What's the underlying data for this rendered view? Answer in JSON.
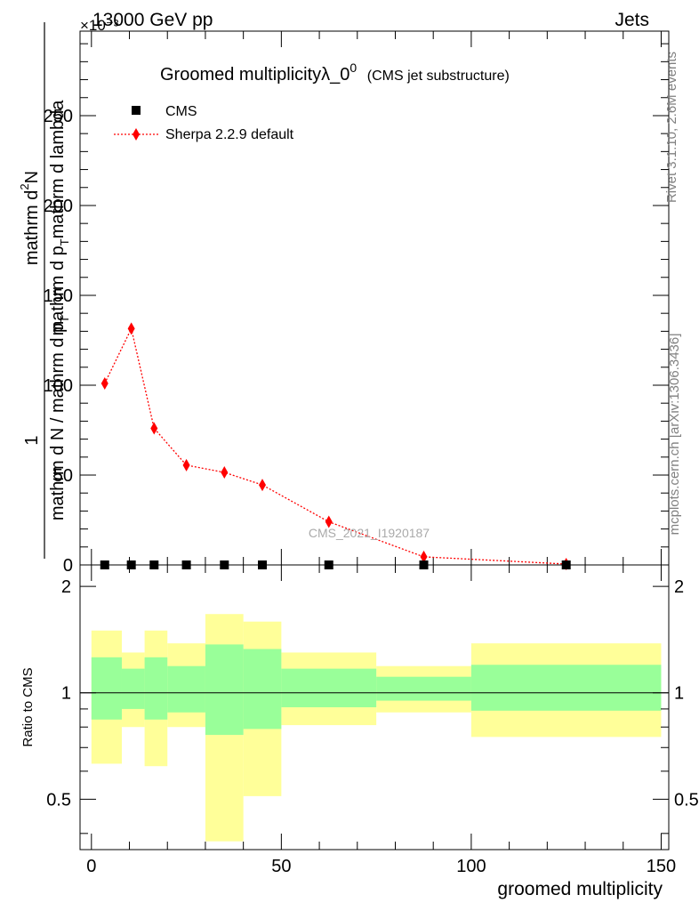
{
  "header": {
    "left": "13000 GeV pp",
    "right": "Jets",
    "exponent": "×10⁻³"
  },
  "chart_data": [
    {
      "type": "line",
      "title": "Groomed multiplicityλ_0",
      "title_superscript": "0",
      "subtitle": "(CMS jet substructure)",
      "ylabel": "1 / (mathrm d N / mathrm d p_T) mathrm d²N / (mathrm d p_T mathrm d lambda)",
      "ylabel_numerator": "mathrm d²N",
      "ylabel_numerator_parts": [
        "mathrm d",
        "2",
        "N"
      ],
      "ylabel_fraction_num": "1",
      "ylabel_fraction_den": "mathrm d N / mathrm d p",
      "ylabel_fraction_den_sub": "T",
      "ylabel_denominator": "mathrm d p_T mathrm d lambda",
      "ylabel_denominator_parts": [
        "mathrm d p",
        "T",
        "mathrm d lambda"
      ],
      "xlim": [
        -3,
        152
      ],
      "ylim": [
        0,
        297
      ],
      "y_ticks": [
        0,
        50,
        100,
        150,
        200,
        250
      ],
      "y_tick_labels": [
        "0",
        "50",
        "100",
        "150",
        "200",
        "250"
      ],
      "legend_position": "top-left",
      "watermark": "CMS_2021_I1920187",
      "series": [
        {
          "name": "CMS",
          "marker": "square",
          "color": "#000000",
          "x": [
            3.5,
            10.5,
            16.5,
            25,
            35,
            45,
            62.5,
            87.5,
            125
          ],
          "y": [
            0,
            0,
            0,
            0,
            0,
            0,
            0,
            0,
            0
          ]
        },
        {
          "name": "Sherpa 2.2.9 default",
          "marker": "diamond",
          "line": "dotted",
          "color": "#ff0000",
          "x": [
            3.5,
            10.5,
            16.5,
            25,
            35,
            45,
            62.5,
            87.5,
            125
          ],
          "y": [
            101,
            131.5,
            76,
            55.5,
            51.5,
            44.5,
            24,
            4.5,
            0.5
          ]
        }
      ]
    },
    {
      "type": "area",
      "ylabel": "Ratio to CMS",
      "xlabel": "groomed multiplicity",
      "xlim": [
        -3,
        152
      ],
      "ylim": [
        0.36,
        2.3
      ],
      "x_ticks": [
        0,
        50,
        100,
        150
      ],
      "x_tick_labels": [
        "0",
        "50",
        "100",
        "150"
      ],
      "y_ticks": [
        0.5,
        1,
        2
      ],
      "y_tick_labels": [
        "0.5",
        "1",
        "2"
      ],
      "reference_line": 1,
      "band_colors": {
        "inner": "#99ff99",
        "outer": "#ffff99"
      },
      "bins": [
        {
          "lo": 0,
          "hi": 8,
          "inner": [
            0.84,
            1.26
          ],
          "outer": [
            0.63,
            1.5
          ]
        },
        {
          "lo": 8,
          "hi": 14,
          "inner": [
            0.9,
            1.17
          ],
          "outer": [
            0.8,
            1.3
          ]
        },
        {
          "lo": 14,
          "hi": 20,
          "inner": [
            0.84,
            1.26
          ],
          "outer": [
            0.62,
            1.5
          ]
        },
        {
          "lo": 20,
          "hi": 30,
          "inner": [
            0.88,
            1.19
          ],
          "outer": [
            0.8,
            1.38
          ]
        },
        {
          "lo": 30,
          "hi": 40,
          "inner": [
            0.76,
            1.37
          ],
          "outer": [
            0.38,
            1.67
          ]
        },
        {
          "lo": 40,
          "hi": 50,
          "inner": [
            0.79,
            1.33
          ],
          "outer": [
            0.51,
            1.59
          ]
        },
        {
          "lo": 50,
          "hi": 75,
          "inner": [
            0.91,
            1.17
          ],
          "outer": [
            0.81,
            1.3
          ]
        },
        {
          "lo": 75,
          "hi": 100,
          "inner": [
            0.95,
            1.11
          ],
          "outer": [
            0.88,
            1.19
          ]
        },
        {
          "lo": 100,
          "hi": 150,
          "inner": [
            0.89,
            1.2
          ],
          "outer": [
            0.75,
            1.38
          ]
        }
      ]
    }
  ],
  "side_labels": {
    "rivet": "Rivet 3.1.10,  2.6M events",
    "mcplots": "mcplots.cern.ch [arXiv:1306.3436]"
  }
}
